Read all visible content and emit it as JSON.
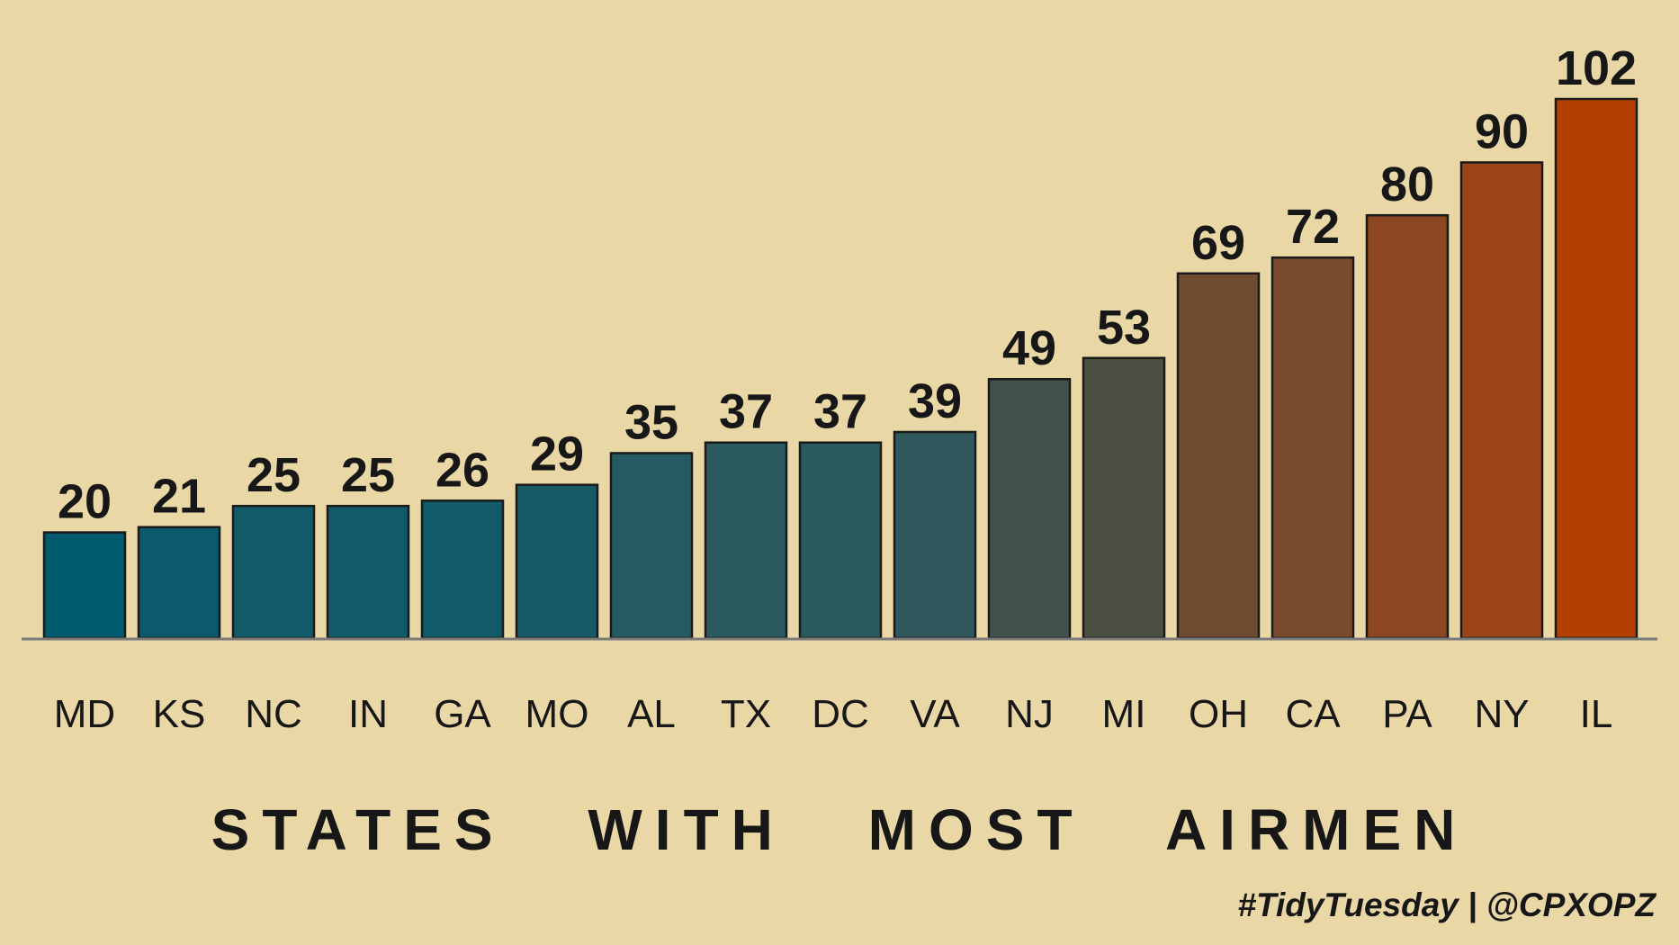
{
  "chart_data": {
    "type": "bar",
    "categories": [
      "MD",
      "KS",
      "NC",
      "IN",
      "GA",
      "MO",
      "AL",
      "TX",
      "DC",
      "VA",
      "NJ",
      "MI",
      "OH",
      "CA",
      "PA",
      "NY",
      "IL"
    ],
    "values": [
      20,
      21,
      25,
      25,
      26,
      29,
      35,
      37,
      37,
      39,
      49,
      53,
      69,
      72,
      80,
      90,
      102
    ],
    "colors": [
      "#005b6e",
      "#0a5a6b",
      "#105a69",
      "#105a69",
      "#125a68",
      "#185966",
      "#245a61",
      "#2a5a60",
      "#2a5a60",
      "#30585d",
      "#43524c",
      "#4b4e43",
      "#6f4b30",
      "#7a4a2c",
      "#8c4722",
      "#9a4417",
      "#b33f02"
    ],
    "title": "STATES WITH MOST AIRMEN",
    "xlabel": "",
    "ylabel": "",
    "ylim": [
      0,
      102
    ],
    "grid": false,
    "legend": "none",
    "background": "#e9d8a6",
    "axis_color": "#7a7a7a",
    "bar_outline": "#1a1a1a"
  },
  "caption": "#TidyTuesday | @CPXOPZ"
}
